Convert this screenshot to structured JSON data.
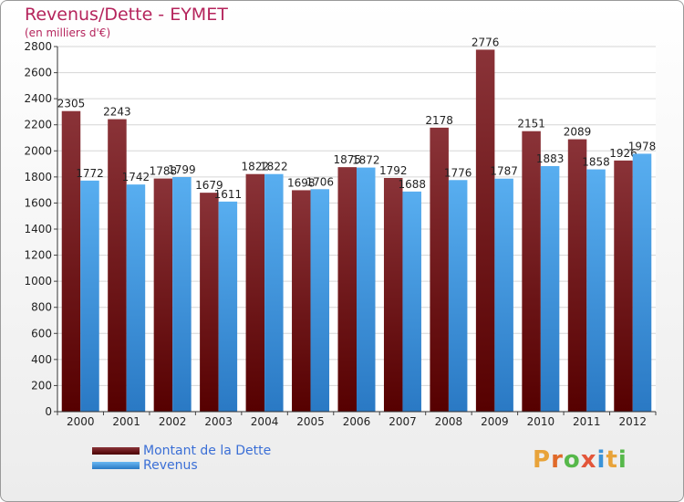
{
  "title": "Revenus/Dette - EYMET",
  "subtitle": "(en milliers d'€)",
  "brand": {
    "letters": [
      "P",
      "r",
      "o",
      "x",
      "i",
      "t",
      "i"
    ],
    "colors": [
      "#e8a33a",
      "#e06a2a",
      "#56b84a",
      "#e3563a",
      "#3a93d8",
      "#e8a33a",
      "#56b84a"
    ]
  },
  "colors": {
    "dette": "#7a1a1c",
    "revenus": "#4ea3e4",
    "title": "#b5245c",
    "legend_text": "#3b6fd6"
  },
  "chart_data": {
    "type": "bar",
    "categories": [
      "2000",
      "2001",
      "2002",
      "2003",
      "2004",
      "2005",
      "2006",
      "2007",
      "2008",
      "2009",
      "2010",
      "2011",
      "2012"
    ],
    "series": [
      {
        "name": "Montant de la Dette",
        "values": [
          2305,
          2243,
          1788,
          1679,
          1822,
          1698,
          1875,
          1792,
          2178,
          2776,
          2151,
          2089,
          1926
        ]
      },
      {
        "name": "Revenus",
        "values": [
          1772,
          1742,
          1799,
          1611,
          1822,
          1706,
          1872,
          1688,
          1776,
          1787,
          1883,
          1858,
          1978
        ]
      }
    ],
    "ylim": [
      0,
      2800
    ],
    "yticks": [
      0,
      200,
      400,
      600,
      800,
      1000,
      1200,
      1400,
      1600,
      1800,
      2000,
      2200,
      2400,
      2600,
      2800
    ],
    "grid": true,
    "legend": "bottom-left"
  }
}
